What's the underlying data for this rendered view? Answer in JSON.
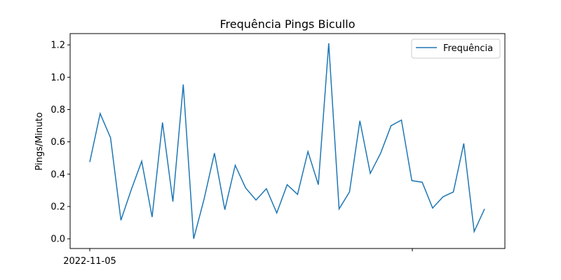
{
  "chart_data": {
    "type": "line",
    "title": "Frequência Pings Bicullo",
    "xlabel": "",
    "ylabel": "Pings/Minuto",
    "ylim": [
      -0.06,
      1.27
    ],
    "yticks": [
      "0.0",
      "0.2",
      "0.4",
      "0.6",
      "0.8",
      "1.0",
      "1.2"
    ],
    "xtick_labels": [
      "2022-11-05",
      ""
    ],
    "legend": "upper right",
    "grid": false,
    "color": "#1f77b4",
    "series": [
      {
        "name": "Frequência",
        "values": [
          0.475,
          0.775,
          0.625,
          0.115,
          0.305,
          0.48,
          0.135,
          0.72,
          0.23,
          0.955,
          0.0,
          0.245,
          0.53,
          0.18,
          0.455,
          0.315,
          0.24,
          0.31,
          0.16,
          0.335,
          0.275,
          0.54,
          0.335,
          1.21,
          0.185,
          0.29,
          0.73,
          0.405,
          0.53,
          0.7,
          0.735,
          0.36,
          0.35,
          0.19,
          0.26,
          0.29,
          0.59,
          0.045,
          0.185
        ]
      }
    ]
  }
}
